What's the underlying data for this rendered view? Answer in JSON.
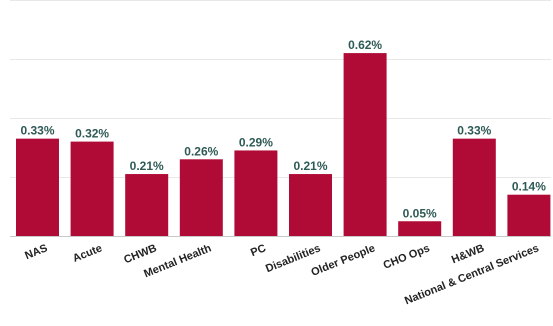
{
  "chart_data": {
    "type": "bar",
    "title": "",
    "xlabel": "",
    "ylabel": "",
    "categories": [
      "NAS",
      "Acute",
      "CHWB",
      "Mental Health",
      "PC",
      "Disabilities",
      "Older People",
      "CHO Ops",
      "H&WB",
      "National & Central Services"
    ],
    "values": [
      0.33,
      0.32,
      0.21,
      0.26,
      0.29,
      0.21,
      0.62,
      0.05,
      0.33,
      0.14
    ],
    "value_labels": [
      "0.33%",
      "0.32%",
      "0.21%",
      "0.26%",
      "0.29%",
      "0.21%",
      "0.62%",
      "0.05%",
      "0.33%",
      "0.14%"
    ],
    "unit": "%",
    "ylim": [
      0,
      0.8
    ],
    "gridlines": [
      0.2,
      0.4,
      0.6,
      0.8
    ],
    "grid": true,
    "legend": "none",
    "colors": {
      "bar": "#b00a36",
      "value_label": "#2e5a55",
      "grid": "#e8e8e8",
      "axis": "#c8c8c8"
    }
  }
}
